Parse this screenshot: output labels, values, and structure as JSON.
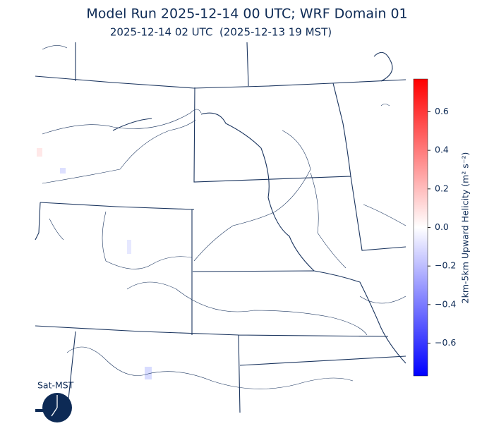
{
  "header": {
    "title": "Model Run 2025-12-14 00 UTC; WRF Domain 01",
    "subtitle": "2025-12-14 02 UTC  (2025-12-13 19 MST)"
  },
  "colorbar": {
    "label": "2km-5km Upward Helicity (m² s⁻²)",
    "lim": [
      -0.77,
      0.77
    ],
    "ticks": [
      {
        "value": -0.6,
        "label": "−0.6"
      },
      {
        "value": -0.4,
        "label": "−0.4"
      },
      {
        "value": -0.2,
        "label": "−0.2"
      },
      {
        "value": 0,
        "label": "0.0"
      },
      0.2,
      0.4,
      0.6
    ],
    "colors": [
      "#0000ff",
      "#ffffff",
      "#ff0000"
    ]
  },
  "clock": {
    "label": "Sat-MST"
  }
}
